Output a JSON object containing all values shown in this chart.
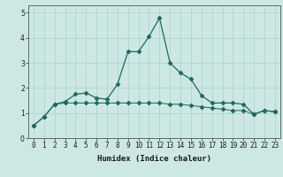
{
  "xlabel": "Humidex (Indice chaleur)",
  "ylabel": "",
  "bg_color": "#cde8e4",
  "line_color": "#1a6b5a",
  "grid_color": "#b0d4ce",
  "x_data": [
    0,
    1,
    2,
    3,
    4,
    5,
    6,
    7,
    8,
    9,
    10,
    11,
    12,
    13,
    14,
    15,
    16,
    17,
    18,
    19,
    20,
    21,
    22,
    23
  ],
  "y1_data": [
    0.5,
    0.85,
    1.35,
    1.45,
    1.75,
    1.8,
    1.6,
    1.55,
    2.15,
    3.45,
    3.45,
    4.05,
    4.8,
    3.0,
    2.6,
    2.35,
    1.7,
    1.4,
    1.4,
    1.4,
    1.35,
    0.95,
    1.1,
    1.05
  ],
  "y2_data": [
    0.5,
    0.85,
    1.35,
    1.4,
    1.4,
    1.4,
    1.4,
    1.4,
    1.4,
    1.4,
    1.4,
    1.4,
    1.4,
    1.35,
    1.35,
    1.3,
    1.25,
    1.2,
    1.15,
    1.1,
    1.1,
    0.95,
    1.1,
    1.05
  ],
  "ylim": [
    0,
    5.3
  ],
  "xlim": [
    -0.5,
    23.5
  ],
  "yticks": [
    0,
    1,
    2,
    3,
    4,
    5
  ],
  "xticks": [
    0,
    1,
    2,
    3,
    4,
    5,
    6,
    7,
    8,
    9,
    10,
    11,
    12,
    13,
    14,
    15,
    16,
    17,
    18,
    19,
    20,
    21,
    22,
    23
  ],
  "marker": "D",
  "markersize": 2.5,
  "linewidth": 0.9,
  "tick_fontsize": 5.5,
  "xlabel_fontsize": 6.5
}
